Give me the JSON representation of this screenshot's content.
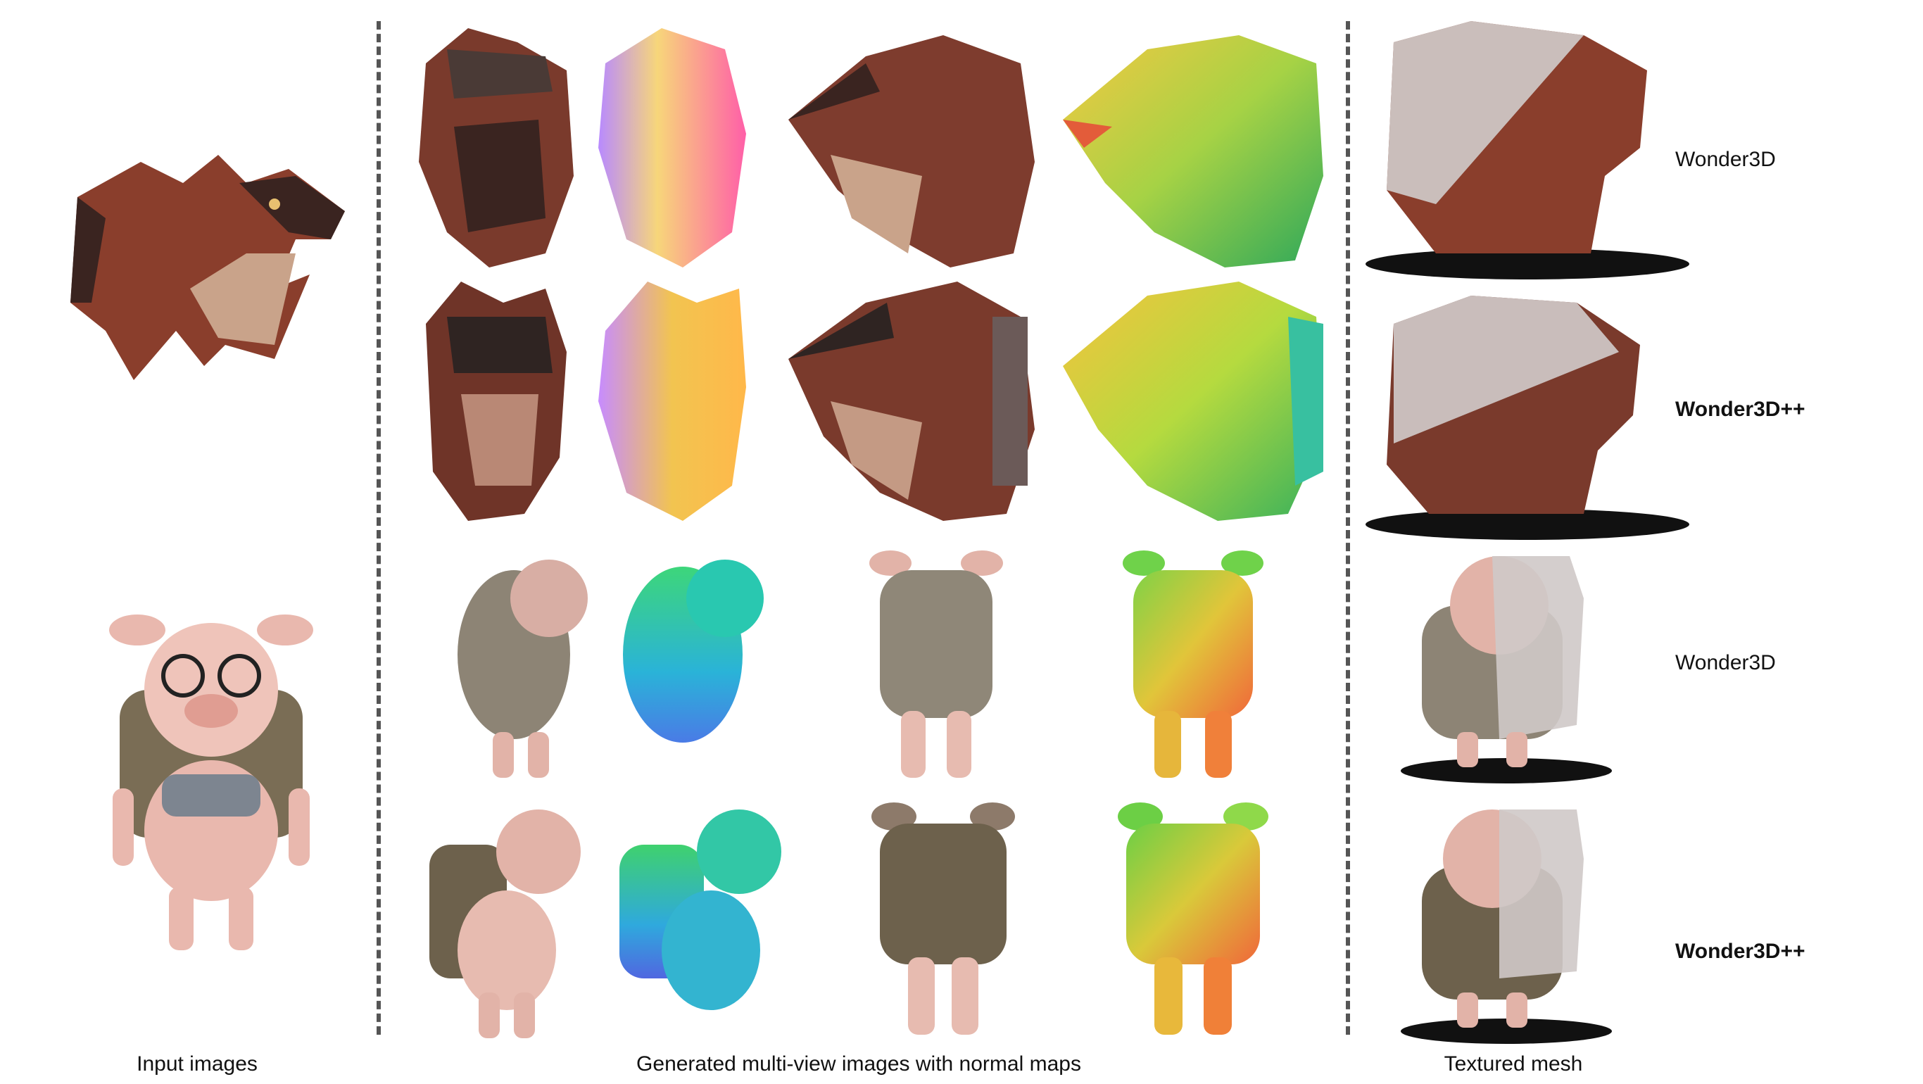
{
  "figure": {
    "rows": [
      {
        "subject": "dragon",
        "method": "Wonder3D",
        "bold": false
      },
      {
        "subject": "dragon",
        "method": "Wonder3D++",
        "bold": true
      },
      {
        "subject": "pig",
        "method": "Wonder3D",
        "bold": false
      },
      {
        "subject": "pig",
        "method": "Wonder3D++",
        "bold": true
      }
    ],
    "captions": {
      "input": "Input images",
      "multiview": "Generated multi-view images with normal maps",
      "mesh": "Textured mesh"
    },
    "colors": {
      "dragon_rgb": "#8a3e2c",
      "dragon_dark": "#3a2420",
      "dragon_light": "#c9a38a",
      "pig_skin": "#e9b8ae",
      "pig_pack": "#7a6d55",
      "mesh_gray": "#cfc9c8",
      "shadow": "#111111",
      "divider": "#555555"
    }
  }
}
